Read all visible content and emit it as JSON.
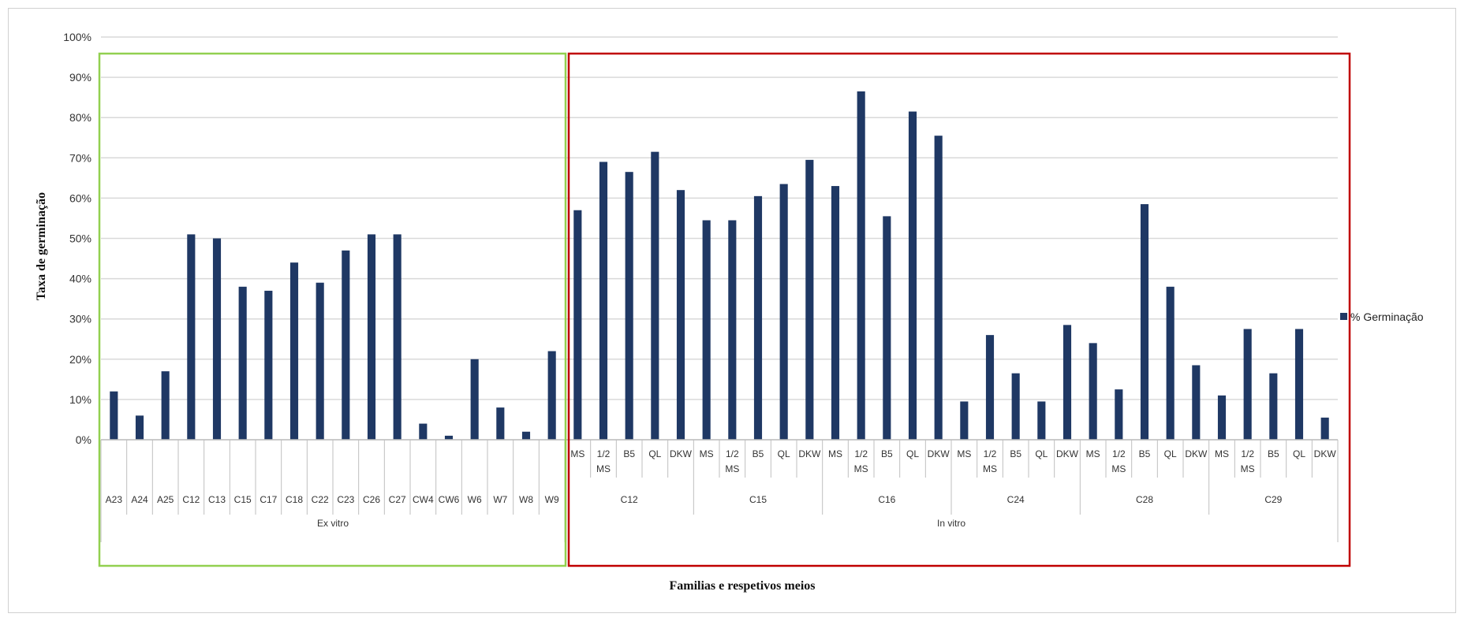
{
  "chart_data": {
    "type": "bar",
    "ylabel": "Taxa de germinação",
    "xlabel": "Familias e respetivos meios",
    "ylim": [
      0,
      100
    ],
    "yticks": [
      0,
      10,
      20,
      30,
      40,
      50,
      60,
      70,
      80,
      90,
      100
    ],
    "ytick_suffix": "%",
    "grid": true,
    "legend": {
      "placement": "right",
      "entries": [
        "% Germinação"
      ]
    },
    "colors": {
      "bar": "#1f3864",
      "grid": "#d9d9d9",
      "ex_vitro_box": "#92d050",
      "in_vitro_box": "#c00000"
    },
    "groups": [
      {
        "name": "Ex vitro",
        "families": [
          {
            "name": "A23",
            "bars": [
              {
                "label": "",
                "value": 12
              }
            ]
          },
          {
            "name": "A24",
            "bars": [
              {
                "label": "",
                "value": 6
              }
            ]
          },
          {
            "name": "A25",
            "bars": [
              {
                "label": "",
                "value": 17
              }
            ]
          },
          {
            "name": "C12",
            "bars": [
              {
                "label": "",
                "value": 51
              }
            ]
          },
          {
            "name": "C13",
            "bars": [
              {
                "label": "",
                "value": 50
              }
            ]
          },
          {
            "name": "C15",
            "bars": [
              {
                "label": "",
                "value": 38
              }
            ]
          },
          {
            "name": "C17",
            "bars": [
              {
                "label": "",
                "value": 37
              }
            ]
          },
          {
            "name": "C18",
            "bars": [
              {
                "label": "",
                "value": 44
              }
            ]
          },
          {
            "name": "C22",
            "bars": [
              {
                "label": "",
                "value": 39
              }
            ]
          },
          {
            "name": "C23",
            "bars": [
              {
                "label": "",
                "value": 47
              }
            ]
          },
          {
            "name": "C26",
            "bars": [
              {
                "label": "",
                "value": 51
              }
            ]
          },
          {
            "name": "C27",
            "bars": [
              {
                "label": "",
                "value": 51
              }
            ]
          },
          {
            "name": "CW4",
            "bars": [
              {
                "label": "",
                "value": 4
              }
            ]
          },
          {
            "name": "CW6",
            "bars": [
              {
                "label": "",
                "value": 1
              }
            ]
          },
          {
            "name": "W6",
            "bars": [
              {
                "label": "",
                "value": 20
              }
            ]
          },
          {
            "name": "W7",
            "bars": [
              {
                "label": "",
                "value": 8
              }
            ]
          },
          {
            "name": "W8",
            "bars": [
              {
                "label": "",
                "value": 2
              }
            ]
          },
          {
            "name": "W9",
            "bars": [
              {
                "label": "",
                "value": 22
              }
            ]
          }
        ]
      },
      {
        "name": "In vitro",
        "families": [
          {
            "name": "C12",
            "bars": [
              {
                "label": "MS",
                "value": 57
              },
              {
                "label": "1/2 MS",
                "value": 69
              },
              {
                "label": "B5",
                "value": 66.5
              },
              {
                "label": "QL",
                "value": 71.5
              },
              {
                "label": "DKW",
                "value": 62
              }
            ]
          },
          {
            "name": "C15",
            "bars": [
              {
                "label": "MS",
                "value": 54.5
              },
              {
                "label": "1/2 MS",
                "value": 54.5
              },
              {
                "label": "B5",
                "value": 60.5
              },
              {
                "label": "QL",
                "value": 63.5
              },
              {
                "label": "DKW",
                "value": 69.5
              }
            ]
          },
          {
            "name": "C16",
            "bars": [
              {
                "label": "MS",
                "value": 63
              },
              {
                "label": "1/2 MS",
                "value": 86.5
              },
              {
                "label": "B5",
                "value": 55.5
              },
              {
                "label": "QL",
                "value": 81.5
              },
              {
                "label": "DKW",
                "value": 75.5
              }
            ]
          },
          {
            "name": "C24",
            "bars": [
              {
                "label": "MS",
                "value": 9.5
              },
              {
                "label": "1/2 MS",
                "value": 26
              },
              {
                "label": "B5",
                "value": 16.5
              },
              {
                "label": "QL",
                "value": 9.5
              },
              {
                "label": "DKW",
                "value": 28.5
              }
            ]
          },
          {
            "name": "C28",
            "bars": [
              {
                "label": "MS",
                "value": 24
              },
              {
                "label": "1/2 MS",
                "value": 12.5
              },
              {
                "label": "B5",
                "value": 58.5
              },
              {
                "label": "QL",
                "value": 38
              },
              {
                "label": "DKW",
                "value": 18.5
              }
            ]
          },
          {
            "name": "C29",
            "bars": [
              {
                "label": "MS",
                "value": 11
              },
              {
                "label": "1/2 MS",
                "value": 27.5
              },
              {
                "label": "B5",
                "value": 16.5
              },
              {
                "label": "QL",
                "value": 27.5
              },
              {
                "label": "DKW",
                "value": 5.5
              }
            ]
          }
        ]
      }
    ]
  }
}
